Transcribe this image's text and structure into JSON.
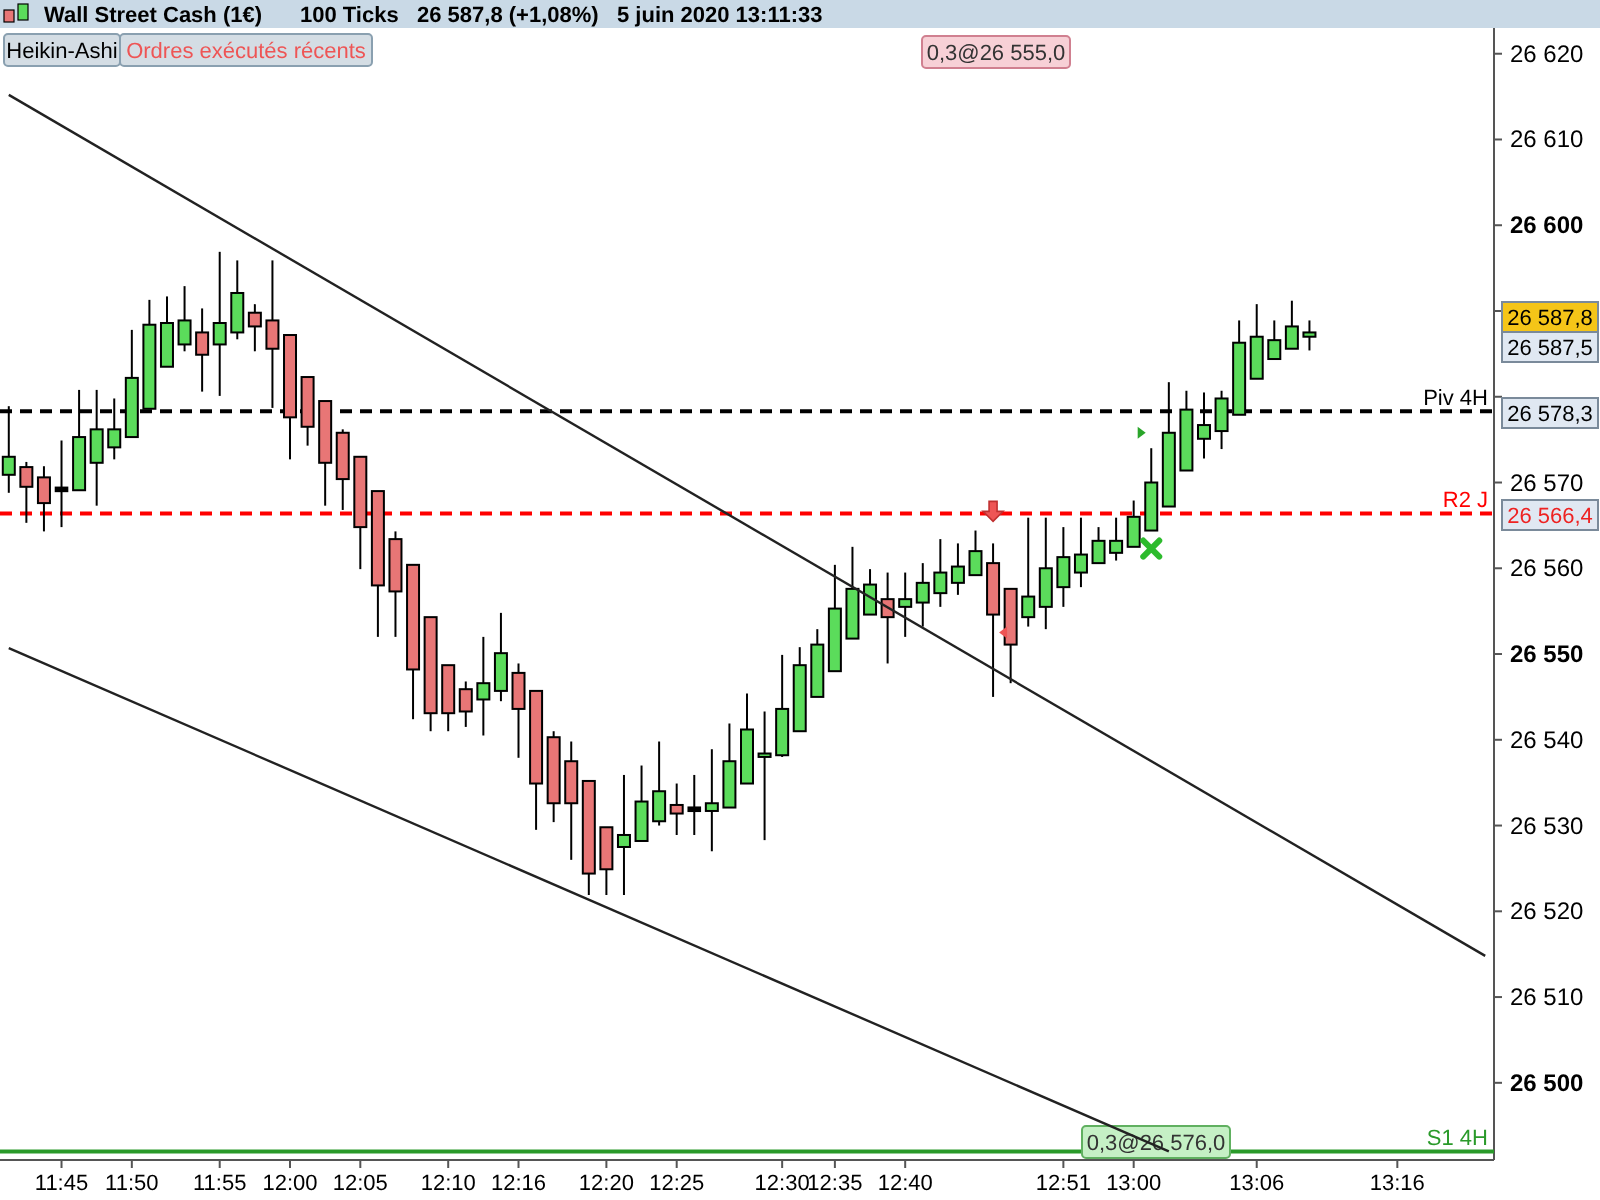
{
  "chart_data": {
    "type": "candlestick",
    "title": "Wall Street Cash (1€)",
    "subtitle": "100 Ticks   26 587,8 (+1,08%)   5 juin 2020 13:11:33",
    "categories": [
      null,
      null,
      null,
      "11:45",
      null,
      null,
      null,
      "11:50",
      null,
      null,
      null,
      null,
      "11:55",
      null,
      null,
      null,
      "12:00",
      null,
      null,
      null,
      "12:05",
      null,
      null,
      null,
      null,
      "12:10",
      null,
      null,
      null,
      "12:16",
      null,
      null,
      null,
      null,
      "12:20",
      null,
      null,
      null,
      "12:25",
      null,
      null,
      null,
      null,
      null,
      "12:30",
      null,
      null,
      "12:35",
      null,
      null,
      null,
      "12:40",
      null,
      null,
      null,
      null,
      null,
      null,
      null,
      null,
      "12:51",
      null,
      null,
      null,
      "13:00",
      null,
      null,
      null,
      null,
      null,
      null,
      "13:06",
      null,
      null,
      null,
      null,
      null,
      null,
      null,
      "13:16",
      null,
      null,
      null,
      null,
      null
    ],
    "ohlc": [
      [
        26570.9,
        26578.9,
        26568.8,
        26573.0
      ],
      [
        26571.8,
        26572.4,
        26565.3,
        26569.5
      ],
      [
        26570.6,
        26571.9,
        26564.3,
        26567.6
      ],
      [
        26569.2,
        26574.9,
        26564.8,
        26569.2
      ],
      [
        26569.1,
        26580.8,
        26569.1,
        26575.3
      ],
      [
        26572.3,
        26580.8,
        26567.3,
        26576.2
      ],
      [
        26574.1,
        26579.8,
        26572.7,
        26576.2
      ],
      [
        26575.3,
        26587.8,
        26575.3,
        26582.2
      ],
      [
        26578.6,
        26591.3,
        26578.6,
        26588.4
      ],
      [
        26583.5,
        26591.7,
        26583.5,
        26588.6
      ],
      [
        26586.1,
        26592.9,
        26585.3,
        26588.9
      ],
      [
        26587.5,
        26590.3,
        26580.6,
        26584.9
      ],
      [
        26586.1,
        26596.9,
        26580.1,
        26588.6
      ],
      [
        26587.5,
        26595.9,
        26586.7,
        26592.1
      ],
      [
        26589.8,
        26590.8,
        26585.3,
        26588.2
      ],
      [
        26588.9,
        26595.9,
        26578.7,
        26585.6
      ],
      [
        26587.2,
        26587.2,
        26572.7,
        26577.6
      ],
      [
        26582.3,
        26582.3,
        26574.3,
        26576.5
      ],
      [
        26579.5,
        26579.5,
        26567.3,
        26572.3
      ],
      [
        26575.8,
        26576.2,
        26566.8,
        26570.4
      ],
      [
        26573.0,
        26573.0,
        26559.9,
        26564.8
      ],
      [
        26569.0,
        26569.0,
        26552.0,
        26558.0
      ],
      [
        26563.4,
        26564.3,
        26552.0,
        26557.3
      ],
      [
        26560.4,
        26560.4,
        26542.4,
        26548.2
      ],
      [
        26554.3,
        26554.3,
        26541.0,
        26543.1
      ],
      [
        26548.7,
        26548.7,
        26541.0,
        26543.1
      ],
      [
        26545.9,
        26546.8,
        26541.5,
        26543.3
      ],
      [
        26544.7,
        26552.0,
        26540.5,
        26546.6
      ],
      [
        26545.7,
        26554.8,
        26544.5,
        26550.1
      ],
      [
        26547.8,
        26548.9,
        26537.9,
        26543.6
      ],
      [
        26545.7,
        26545.7,
        26529.5,
        26534.9
      ],
      [
        26540.3,
        26541.0,
        26530.4,
        26532.6
      ],
      [
        26537.5,
        26539.8,
        26526.0,
        26532.6
      ],
      [
        26535.2,
        26535.2,
        26521.9,
        26524.4
      ],
      [
        26529.8,
        26529.8,
        26521.9,
        26524.9
      ],
      [
        26527.5,
        26535.9,
        26521.9,
        26528.9
      ],
      [
        26528.2,
        26537.0,
        26528.2,
        26532.8
      ],
      [
        26530.5,
        26539.8,
        26530.0,
        26534.0
      ],
      [
        26532.4,
        26534.9,
        26528.9,
        26531.4
      ],
      [
        26531.9,
        26535.9,
        26528.9,
        26531.9
      ],
      [
        26531.7,
        26538.9,
        26527.0,
        26532.6
      ],
      [
        26532.1,
        26541.9,
        26532.1,
        26537.5
      ],
      [
        26534.9,
        26545.4,
        26534.9,
        26541.2
      ],
      [
        26538.0,
        26543.3,
        26528.3,
        26538.4
      ],
      [
        26538.2,
        26549.9,
        26538.0,
        26543.6
      ],
      [
        26541.0,
        26550.8,
        26541.0,
        26548.7
      ],
      [
        26545.0,
        26552.9,
        26545.0,
        26551.1
      ],
      [
        26548.0,
        26560.4,
        26548.0,
        26555.3
      ],
      [
        26551.8,
        26562.5,
        26551.8,
        26557.6
      ],
      [
        26554.6,
        26559.9,
        26554.6,
        26558.1
      ],
      [
        26556.4,
        26559.5,
        26548.9,
        26554.3
      ],
      [
        26555.5,
        26559.5,
        26552.0,
        26556.4
      ],
      [
        26556.0,
        26560.6,
        26553.2,
        26558.3
      ],
      [
        26557.1,
        26563.4,
        26555.5,
        26559.5
      ],
      [
        26558.3,
        26562.9,
        26556.9,
        26560.2
      ],
      [
        26559.2,
        26564.4,
        26559.2,
        26562.0
      ],
      [
        26560.6,
        26562.9,
        26545.0,
        26554.6
      ],
      [
        26557.6,
        26557.6,
        26546.6,
        26551.1
      ],
      [
        26554.3,
        26565.9,
        26553.2,
        26556.7
      ],
      [
        26555.5,
        26565.9,
        26552.9,
        26560.0
      ],
      [
        26557.8,
        26564.8,
        26555.5,
        26561.3
      ],
      [
        26559.5,
        26565.9,
        26557.8,
        26561.6
      ],
      [
        26560.6,
        26564.8,
        26560.6,
        26563.2
      ],
      [
        26561.8,
        26565.9,
        26560.9,
        26563.2
      ],
      [
        26562.5,
        26567.9,
        26562.5,
        26566.0
      ],
      [
        26564.4,
        26574.0,
        26564.4,
        26570.0
      ],
      [
        26567.2,
        26581.7,
        26567.2,
        26575.8
      ],
      [
        26571.4,
        26580.7,
        26571.4,
        26578.5
      ],
      [
        26575.1,
        26580.5,
        26572.8,
        26576.7
      ],
      [
        26576.0,
        26580.7,
        26573.9,
        26579.8
      ],
      [
        26577.9,
        26588.9,
        26577.9,
        26586.3
      ],
      [
        26582.1,
        26590.8,
        26582.1,
        26587.0
      ],
      [
        26584.4,
        26588.9,
        26584.4,
        26586.6
      ],
      [
        26585.6,
        26591.2,
        26585.6,
        26588.2
      ],
      [
        26587.0,
        26588.9,
        26585.4,
        26587.5
      ],
      null,
      null,
      null,
      null,
      null,
      null,
      null,
      null,
      null,
      null
    ],
    "colors": [
      "#5bdc5b",
      "#e87676",
      "#e87676",
      "#000000",
      "#5bdc5b",
      "#5bdc5b",
      "#5bdc5b",
      "#5bdc5b",
      "#5bdc5b",
      "#5bdc5b",
      "#5bdc5b",
      "#e87676",
      "#5bdc5b",
      "#5bdc5b",
      "#e87676",
      "#e87676",
      "#e87676",
      "#e87676",
      "#e87676",
      "#e87676",
      "#e87676",
      "#e87676",
      "#e87676",
      "#e87676",
      "#e87676",
      "#e87676",
      "#e87676",
      "#5bdc5b",
      "#5bdc5b",
      "#e87676",
      "#e87676",
      "#e87676",
      "#e87676",
      "#e87676",
      "#e87676",
      "#5bdc5b",
      "#5bdc5b",
      "#5bdc5b",
      "#e87676",
      "#000000",
      "#5bdc5b",
      "#5bdc5b",
      "#5bdc5b",
      "#5bdc5b",
      "#5bdc5b",
      "#5bdc5b",
      "#5bdc5b",
      "#5bdc5b",
      "#5bdc5b",
      "#5bdc5b",
      "#e87676",
      "#5bdc5b",
      "#5bdc5b",
      "#5bdc5b",
      "#5bdc5b",
      "#5bdc5b",
      "#e87676",
      "#e87676",
      "#5bdc5b",
      "#5bdc5b",
      "#5bdc5b",
      "#5bdc5b",
      "#5bdc5b",
      "#5bdc5b",
      "#5bdc5b",
      "#5bdc5b",
      "#5bdc5b",
      "#5bdc5b",
      "#5bdc5b",
      "#5bdc5b",
      "#5bdc5b",
      "#5bdc5b",
      "#5bdc5b",
      "#5bdc5b",
      "#5bdc5b",
      null,
      null,
      null,
      null,
      null,
      null,
      null,
      null,
      null,
      null
    ],
    "series": [
      {
        "type": "line",
        "values": [
          26615.2,
          null,
          null,
          null,
          null,
          null,
          null,
          null,
          null,
          null,
          null,
          null,
          null,
          null,
          null,
          null,
          null,
          null,
          null,
          null,
          null,
          null,
          null,
          null,
          null,
          null,
          null,
          null,
          null,
          null,
          null,
          null,
          null,
          null,
          null,
          null,
          null,
          null,
          null,
          null,
          null,
          null,
          null,
          null,
          null,
          null,
          null,
          null,
          null,
          null,
          null,
          null,
          null,
          null,
          null,
          null,
          null,
          null,
          null,
          null,
          null,
          null,
          null,
          null,
          null,
          null,
          null,
          null,
          null,
          null,
          null,
          null,
          null,
          null,
          null,
          null,
          null,
          null,
          null,
          null,
          null,
          null,
          null,
          null,
          26514.8
        ],
        "color": "#222222"
      },
      {
        "type": "line",
        "values": [
          26550.7,
          null,
          null,
          null,
          null,
          null,
          null,
          null,
          null,
          null,
          null,
          null,
          null,
          null,
          null,
          null,
          null,
          null,
          null,
          null,
          null,
          null,
          null,
          null,
          null,
          null,
          null,
          null,
          null,
          null,
          null,
          null,
          null,
          null,
          null,
          null,
          null,
          null,
          null,
          null,
          null,
          null,
          null,
          null,
          null,
          null,
          null,
          null,
          null,
          null,
          null,
          null,
          null,
          null,
          null,
          null,
          null,
          null,
          null,
          null,
          null,
          null,
          null,
          null,
          null,
          null,
          26492.0,
          null,
          null,
          null,
          null,
          null,
          null,
          null,
          null,
          null,
          null,
          null,
          null,
          null,
          null,
          null,
          null,
          null,
          null
        ],
        "color": "#222222"
      }
    ],
    "ylim": [
      26491,
      26623
    ],
    "yticks": [
      {
        "value": 26500,
        "label": "26 500"
      },
      {
        "value": 26510,
        "label": "26 510"
      },
      {
        "value": 26520,
        "label": "26 520"
      },
      {
        "value": 26530,
        "label": "26 530"
      },
      {
        "value": 26540,
        "label": "26 540"
      },
      {
        "value": 26550,
        "label": "26 550"
      },
      {
        "value": 26560,
        "label": "26 560"
      },
      {
        "value": 26570,
        "label": "26 570"
      },
      {
        "value": 26580,
        "label": null
      },
      {
        "value": 26590,
        "label": null
      },
      {
        "value": 26600,
        "label": "26 600"
      },
      {
        "value": 26610,
        "label": "26 610"
      },
      {
        "value": 26620,
        "label": "26 620"
      }
    ],
    "ref_lines": [
      {
        "axis": "y",
        "value": 26566.4,
        "label": "R2 J",
        "color": "#ff0000",
        "line_style": "dashed"
      },
      {
        "axis": "y",
        "value": 26578.3,
        "label": "Piv 4H",
        "color": "#000000",
        "line_style": "dashed"
      },
      {
        "axis": "y",
        "value": 26492,
        "label": "S1 4H",
        "color": "#2a9a2a",
        "line_style": "solid"
      }
    ],
    "annotations": [
      "Heikin-Ashi",
      "Ordres exécutés récents",
      "0,3@26 555,0",
      "0,3@26 576,0",
      "26 587,8",
      "26 587,5",
      "26 578,3",
      "26 566,4"
    ],
    "grid": false
  }
}
